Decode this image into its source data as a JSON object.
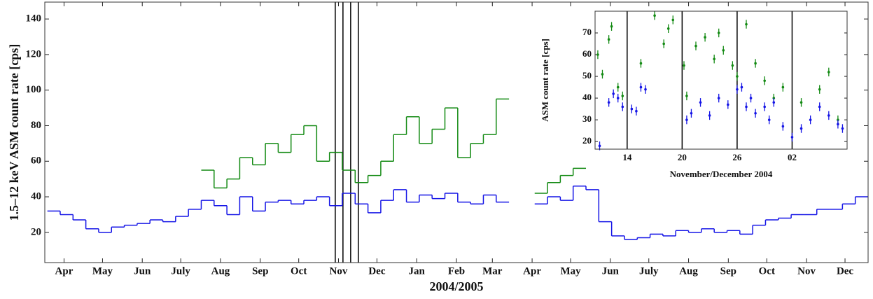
{
  "chart_data": [
    {
      "type": "step",
      "ylabel": "1.5–12 keV ASM count rate [cps]",
      "xlabel": "2004/2005",
      "xlim": [
        -2,
        640
      ],
      "ylim": [
        3,
        149.5
      ],
      "yticks": [
        20,
        40,
        60,
        80,
        100,
        120,
        140
      ],
      "xticks": [
        {
          "value": 13,
          "label": "Apr"
        },
        {
          "value": 43,
          "label": "May"
        },
        {
          "value": 74,
          "label": "Jun"
        },
        {
          "value": 104,
          "label": "July"
        },
        {
          "value": 135,
          "label": "Aug"
        },
        {
          "value": 166,
          "label": "Sep"
        },
        {
          "value": 196,
          "label": "Oct"
        },
        {
          "value": 227,
          "label": "Nov"
        },
        {
          "value": 257,
          "label": "Dec"
        },
        {
          "value": 288,
          "label": "Jan"
        },
        {
          "value": 319,
          "label": "Feb"
        },
        {
          "value": 347,
          "label": "Mar"
        },
        {
          "value": 378,
          "label": "Apr"
        },
        {
          "value": 408,
          "label": "May"
        },
        {
          "value": 439,
          "label": "Jun"
        },
        {
          "value": 469,
          "label": "July"
        },
        {
          "value": 500,
          "label": "Aug"
        },
        {
          "value": 531,
          "label": "Sep"
        },
        {
          "value": 561,
          "label": "Oct"
        },
        {
          "value": 592,
          "label": "Nov"
        },
        {
          "value": 622,
          "label": "Dec"
        }
      ],
      "vlines": [
        224.5,
        230.5,
        236.5,
        242.5
      ],
      "x": [
        0,
        10,
        20,
        30,
        40,
        50,
        60,
        70,
        80,
        90,
        100,
        110,
        120,
        130,
        140,
        150,
        160,
        170,
        180,
        190,
        200,
        210,
        220,
        230,
        240,
        250,
        260,
        270,
        280,
        290,
        300,
        310,
        320,
        330,
        340,
        350,
        360,
        370,
        380,
        390,
        400,
        410,
        420,
        430,
        440,
        450,
        460,
        470,
        480,
        490,
        500,
        510,
        520,
        530,
        540,
        550,
        560,
        570,
        580,
        590,
        600,
        610,
        620,
        630
      ],
      "series": [
        {
          "name": "green",
          "color": "#138a13",
          "values": [
            null,
            null,
            null,
            null,
            null,
            null,
            null,
            null,
            null,
            null,
            null,
            null,
            55,
            45,
            50,
            62,
            58,
            70,
            65,
            75,
            80,
            60,
            65,
            55,
            48,
            52,
            60,
            75,
            85,
            70,
            78,
            90,
            62,
            70,
            75,
            95,
            null,
            null,
            42,
            48,
            52,
            56,
            null,
            null,
            null,
            null,
            null,
            null,
            null,
            null,
            null,
            null,
            null,
            null,
            null,
            null,
            null,
            null,
            null,
            null,
            null,
            null,
            null,
            null
          ]
        },
        {
          "name": "blue",
          "color": "#1414e6",
          "values": [
            32,
            30,
            27,
            22,
            20,
            23,
            24,
            25,
            27,
            26,
            29,
            33,
            38,
            35,
            30,
            40,
            32,
            37,
            38,
            36,
            38,
            40,
            35,
            42,
            36,
            31,
            38,
            44,
            37,
            41,
            39,
            42,
            37,
            36,
            41,
            37,
            null,
            null,
            36,
            40,
            38,
            46,
            44,
            26,
            18,
            16,
            17,
            19,
            18,
            21,
            20,
            22,
            20,
            21,
            19,
            24,
            27,
            28,
            30,
            30,
            33,
            33,
            36,
            40
          ]
        }
      ]
    },
    {
      "type": "scatter",
      "ylabel": "ASM count rate [cps]",
      "xlabel": "November/December 2004",
      "xlim": [
        10.5,
        38
      ],
      "ylim": [
        16.5,
        80
      ],
      "yticks": [
        20,
        30,
        40,
        50,
        60,
        70
      ],
      "xticks": [
        14,
        20,
        26,
        {
          "value": 32,
          "label": "02"
        }
      ],
      "vlines": [
        14,
        20,
        26,
        32
      ],
      "series": [
        {
          "name": "green",
          "color": "#138a13",
          "yerr": 2,
          "x": [
            10.8,
            11.3,
            12,
            12.3,
            13,
            13.5,
            15.5,
            17,
            18,
            18.5,
            19,
            20.2,
            20.5,
            21.5,
            22.5,
            23.5,
            24,
            24.5,
            25.5,
            26,
            27,
            28,
            29,
            30,
            31,
            33,
            35,
            36,
            37
          ],
          "values": [
            60,
            51,
            67,
            73,
            45,
            41,
            56,
            78,
            65,
            72,
            76,
            55,
            41,
            64,
            68,
            58,
            70,
            62,
            55,
            50,
            74,
            56,
            48,
            40,
            45,
            38,
            44,
            52,
            30
          ]
        },
        {
          "name": "blue",
          "color": "#1414e6",
          "yerr": 2,
          "x": [
            11,
            12,
            12.5,
            13,
            13.5,
            14.5,
            15,
            15.5,
            16,
            20.5,
            21,
            22,
            23,
            24,
            25,
            26,
            26.5,
            27,
            27.5,
            28,
            29,
            29.5,
            30,
            31,
            32,
            33,
            34,
            35,
            36,
            37,
            37.5
          ],
          "values": [
            18,
            38,
            42,
            40,
            36,
            35,
            34,
            45,
            44,
            30,
            33,
            38,
            32,
            40,
            37,
            44,
            45,
            36,
            40,
            33,
            36,
            30,
            38,
            27,
            22,
            26,
            30,
            36,
            32,
            28,
            26
          ]
        }
      ]
    }
  ]
}
